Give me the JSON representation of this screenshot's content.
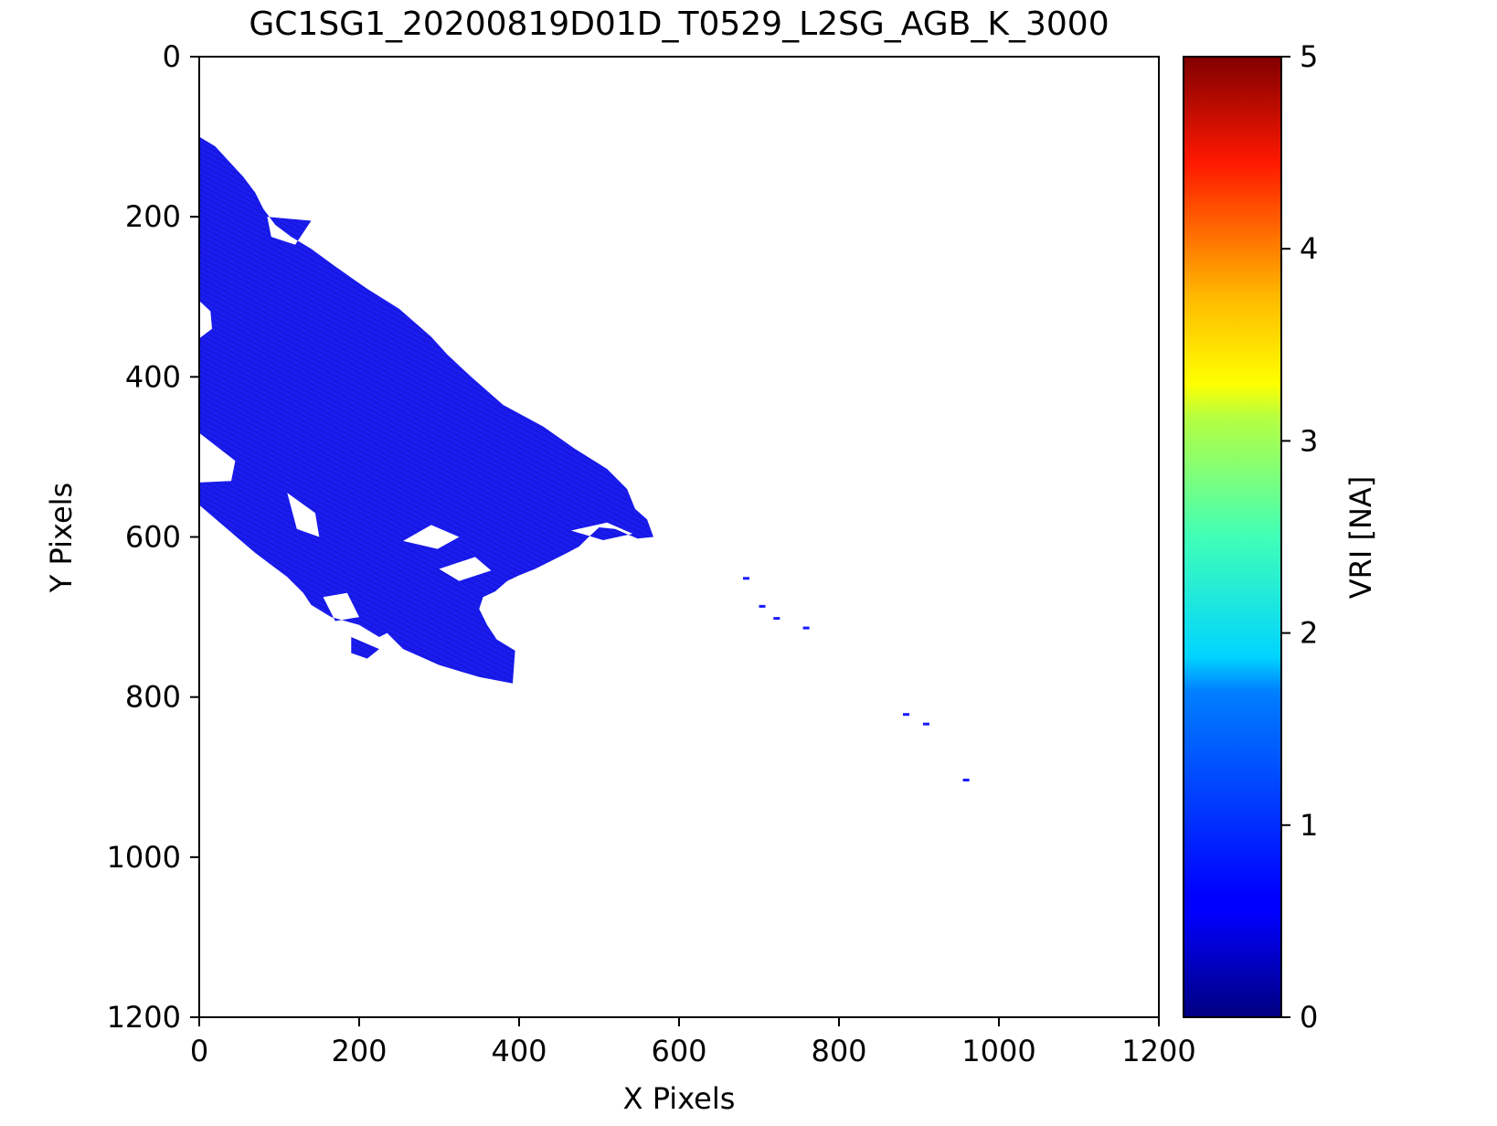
{
  "chart_data": {
    "type": "heatmap",
    "title": "GC1SG1_20200819D01D_T0529_L2SG_AGB_K_3000",
    "xlabel": "X Pixels",
    "ylabel": "Y Pixels",
    "xlim": [
      0,
      1200
    ],
    "ylim": [
      1200,
      0
    ],
    "x_ticks": [
      0,
      200,
      400,
      600,
      800,
      1000,
      1200
    ],
    "y_ticks": [
      0,
      200,
      400,
      600,
      800,
      1000,
      1200
    ],
    "colorbar": {
      "label": "VRI [NA]",
      "range": [
        0,
        5
      ],
      "ticks": [
        0,
        1,
        2,
        3,
        4,
        5
      ],
      "colormap": "jet"
    },
    "grid": false,
    "data_region": {
      "dominant_value_approx": 0.7,
      "color": "#1a1aff",
      "outline": [
        [
          0,
          100
        ],
        [
          20,
          112
        ],
        [
          55,
          150
        ],
        [
          70,
          170
        ],
        [
          80,
          190
        ],
        [
          95,
          210
        ],
        [
          115,
          225
        ],
        [
          140,
          240
        ],
        [
          170,
          262
        ],
        [
          210,
          290
        ],
        [
          250,
          315
        ],
        [
          290,
          350
        ],
        [
          310,
          372
        ],
        [
          340,
          400
        ],
        [
          380,
          435
        ],
        [
          430,
          462
        ],
        [
          470,
          490
        ],
        [
          510,
          515
        ],
        [
          535,
          540
        ],
        [
          545,
          565
        ],
        [
          560,
          578
        ],
        [
          568,
          600
        ],
        [
          548,
          602
        ],
        [
          520,
          590
        ],
        [
          500,
          588
        ],
        [
          485,
          602
        ],
        [
          475,
          612
        ],
        [
          460,
          620
        ],
        [
          440,
          630
        ],
        [
          420,
          640
        ],
        [
          400,
          648
        ],
        [
          385,
          655
        ],
        [
          370,
          668
        ],
        [
          355,
          675
        ],
        [
          350,
          690
        ],
        [
          360,
          710
        ],
        [
          372,
          728
        ],
        [
          395,
          742
        ],
        [
          392,
          783
        ],
        [
          350,
          775
        ],
        [
          300,
          760
        ],
        [
          255,
          740
        ],
        [
          235,
          720
        ],
        [
          225,
          725
        ],
        [
          200,
          710
        ],
        [
          165,
          700
        ],
        [
          140,
          685
        ],
        [
          130,
          670
        ],
        [
          110,
          650
        ],
        [
          70,
          620
        ],
        [
          35,
          590
        ],
        [
          0,
          560
        ]
      ],
      "holes": [
        [
          [
            85,
            200
          ],
          [
            140,
            205
          ],
          [
            120,
            235
          ],
          [
            90,
            225
          ]
        ],
        [
          [
            0,
            305
          ],
          [
            14,
            318
          ],
          [
            16,
            340
          ],
          [
            0,
            352
          ]
        ],
        [
          [
            0,
            470
          ],
          [
            45,
            505
          ],
          [
            40,
            530
          ],
          [
            0,
            532
          ]
        ],
        [
          [
            110,
            545
          ],
          [
            145,
            570
          ],
          [
            150,
            600
          ],
          [
            122,
            590
          ]
        ],
        [
          [
            255,
            605
          ],
          [
            290,
            585
          ],
          [
            325,
            600
          ],
          [
            298,
            615
          ]
        ],
        [
          [
            300,
            640
          ],
          [
            345,
            625
          ],
          [
            365,
            642
          ],
          [
            325,
            655
          ]
        ],
        [
          [
            465,
            592
          ],
          [
            510,
            582
          ],
          [
            542,
            596
          ],
          [
            505,
            604
          ]
        ],
        [
          [
            155,
            675
          ],
          [
            185,
            670
          ],
          [
            200,
            700
          ],
          [
            170,
            705
          ]
        ],
        [
          [
            190,
            725
          ],
          [
            225,
            740
          ],
          [
            210,
            752
          ],
          [
            190,
            745
          ]
        ]
      ],
      "specks": [
        [
          680,
          650
        ],
        [
          700,
          685
        ],
        [
          718,
          700
        ],
        [
          755,
          712
        ],
        [
          880,
          820
        ],
        [
          905,
          832
        ],
        [
          955,
          902
        ]
      ]
    }
  }
}
